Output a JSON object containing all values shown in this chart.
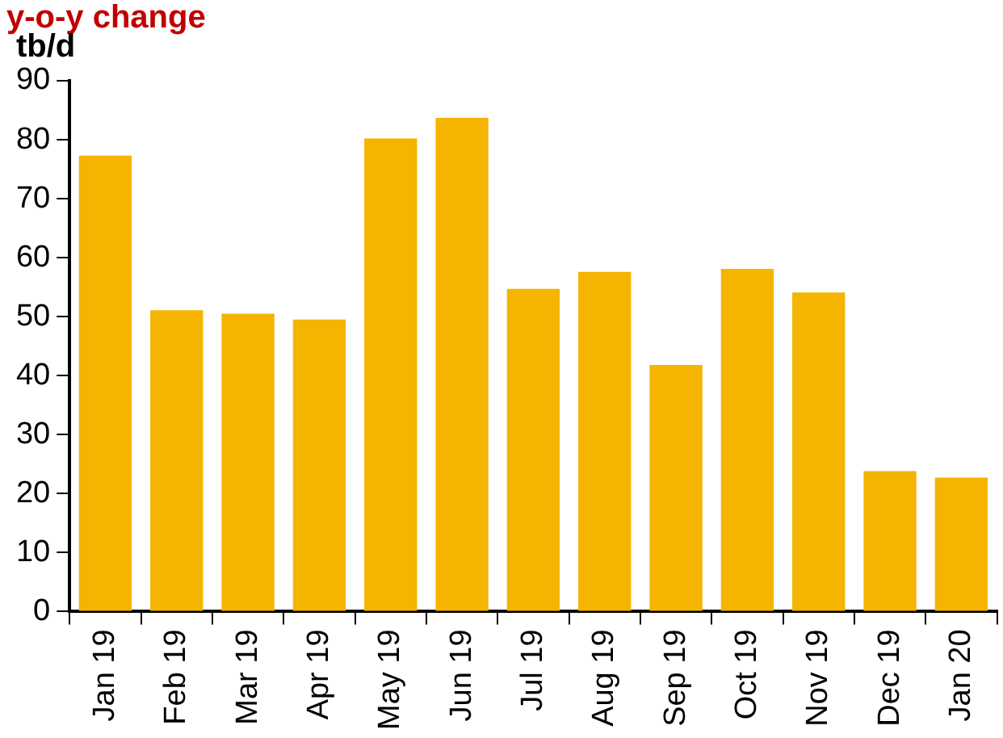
{
  "chart_data": {
    "type": "bar",
    "title": "y-o-y change",
    "ylabel": "tb/d",
    "categories": [
      "Jan 19",
      "Feb 19",
      "Mar 19",
      "Apr 19",
      "May 19",
      "Jun 19",
      "Jul 19",
      "Aug 19",
      "Sep 19",
      "Oct 19",
      "Nov 19",
      "Dec 19",
      "Jan 20"
    ],
    "values": [
      77.3,
      51.1,
      50.5,
      49.5,
      80.2,
      83.7,
      54.7,
      57.6,
      41.8,
      58.1,
      54.1,
      23.8,
      22.7
    ],
    "color": "#f4b400",
    "ylim": [
      0,
      90
    ],
    "yticks": [
      0,
      10,
      20,
      30,
      40,
      50,
      60,
      70,
      80,
      90
    ],
    "grid": false
  }
}
